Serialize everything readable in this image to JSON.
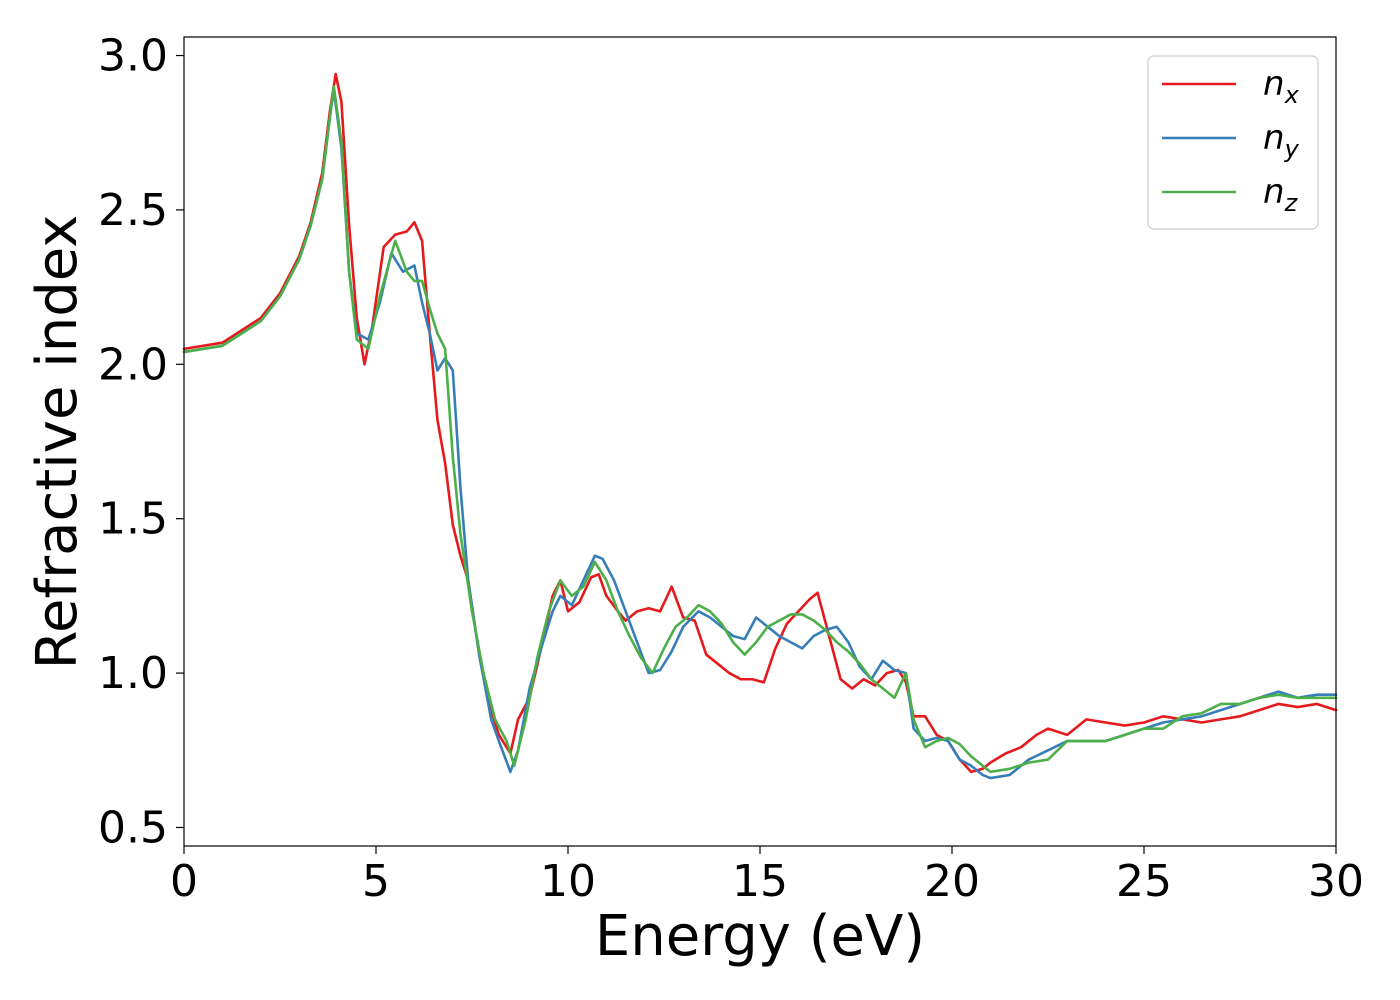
{
  "chart_data": {
    "type": "line",
    "xlabel": "Energy (eV)",
    "ylabel": "Refractive index",
    "xlim": [
      0,
      30
    ],
    "ylim": [
      0.44,
      3.06
    ],
    "x_ticks": [
      0,
      5,
      10,
      15,
      20,
      25,
      30
    ],
    "x_tick_labels": [
      "0",
      "5",
      "10",
      "15",
      "20",
      "25",
      "30"
    ],
    "y_ticks": [
      0.5,
      1.0,
      1.5,
      2.0,
      2.5,
      3.0
    ],
    "y_tick_labels": [
      "0.5",
      "1.0",
      "1.5",
      "2.0",
      "2.5",
      "3.0"
    ],
    "grid": false,
    "legend_position": "top-right",
    "series": [
      {
        "name": "n",
        "subscript": "x",
        "color": "#e41a1c",
        "x": [
          0,
          1,
          2,
          2.5,
          3,
          3.3,
          3.6,
          3.8,
          3.95,
          4.1,
          4.3,
          4.5,
          4.7,
          4.9,
          5.2,
          5.5,
          5.8,
          6.0,
          6.2,
          6.4,
          6.6,
          6.8,
          7.0,
          7.2,
          7.4,
          7.7,
          8.0,
          8.2,
          8.5,
          8.7,
          9.0,
          9.3,
          9.6,
          9.8,
          10.0,
          10.3,
          10.6,
          10.8,
          11.0,
          11.3,
          11.5,
          11.8,
          12.1,
          12.4,
          12.7,
          13.0,
          13.3,
          13.6,
          13.9,
          14.2,
          14.5,
          14.8,
          15.1,
          15.4,
          15.7,
          16.0,
          16.3,
          16.5,
          16.8,
          17.1,
          17.4,
          17.7,
          18.0,
          18.3,
          18.6,
          18.8,
          19.0,
          19.3,
          19.6,
          19.9,
          20.2,
          20.5,
          20.8,
          21.0,
          21.4,
          21.8,
          22.2,
          22.5,
          23.0,
          23.5,
          24.0,
          24.5,
          25.0,
          25.5,
          26.0,
          26.5,
          27.0,
          27.5,
          28.0,
          28.5,
          29.0,
          29.5,
          30.0
        ],
        "y": [
          2.05,
          2.07,
          2.15,
          2.23,
          2.35,
          2.46,
          2.62,
          2.82,
          2.94,
          2.85,
          2.45,
          2.15,
          2.0,
          2.12,
          2.38,
          2.42,
          2.43,
          2.46,
          2.4,
          2.1,
          1.82,
          1.68,
          1.48,
          1.38,
          1.3,
          1.05,
          0.88,
          0.8,
          0.74,
          0.85,
          0.92,
          1.08,
          1.25,
          1.3,
          1.2,
          1.23,
          1.31,
          1.32,
          1.25,
          1.2,
          1.17,
          1.2,
          1.21,
          1.2,
          1.28,
          1.18,
          1.17,
          1.06,
          1.03,
          1.0,
          0.98,
          0.98,
          0.97,
          1.08,
          1.16,
          1.2,
          1.24,
          1.26,
          1.12,
          0.98,
          0.95,
          0.98,
          0.96,
          1.0,
          1.01,
          0.97,
          0.86,
          0.86,
          0.8,
          0.78,
          0.72,
          0.68,
          0.69,
          0.71,
          0.74,
          0.76,
          0.8,
          0.82,
          0.8,
          0.85,
          0.84,
          0.83,
          0.84,
          0.86,
          0.85,
          0.84,
          0.85,
          0.86,
          0.88,
          0.9,
          0.89,
          0.9,
          0.88
        ]
      },
      {
        "name": "n",
        "subscript": "y",
        "color": "#377eb8",
        "x": [
          0,
          1,
          2,
          2.5,
          3,
          3.3,
          3.6,
          3.8,
          3.9,
          4.1,
          4.3,
          4.5,
          4.8,
          5.1,
          5.4,
          5.7,
          6.0,
          6.2,
          6.4,
          6.6,
          6.8,
          7.0,
          7.2,
          7.4,
          7.7,
          8.0,
          8.2,
          8.5,
          8.7,
          9.0,
          9.3,
          9.6,
          9.8,
          10.1,
          10.4,
          10.7,
          10.9,
          11.2,
          11.5,
          11.8,
          12.1,
          12.4,
          12.7,
          13.0,
          13.4,
          13.7,
          14.0,
          14.3,
          14.6,
          14.9,
          15.2,
          15.5,
          15.8,
          16.1,
          16.4,
          16.7,
          17.0,
          17.3,
          17.6,
          17.9,
          18.2,
          18.5,
          18.8,
          19.0,
          19.3,
          19.6,
          19.9,
          20.2,
          20.5,
          20.8,
          21.0,
          21.5,
          22.0,
          22.5,
          23.0,
          23.5,
          24.0,
          24.5,
          25.0,
          25.5,
          26.0,
          26.5,
          27.0,
          27.5,
          28.0,
          28.5,
          29.0,
          29.5,
          30.0
        ],
        "y": [
          2.04,
          2.06,
          2.14,
          2.22,
          2.34,
          2.45,
          2.6,
          2.8,
          2.89,
          2.7,
          2.3,
          2.1,
          2.08,
          2.2,
          2.36,
          2.3,
          2.32,
          2.2,
          2.1,
          1.98,
          2.02,
          1.98,
          1.6,
          1.3,
          1.05,
          0.85,
          0.78,
          0.68,
          0.75,
          0.95,
          1.08,
          1.2,
          1.25,
          1.22,
          1.3,
          1.38,
          1.37,
          1.3,
          1.2,
          1.1,
          1.0,
          1.01,
          1.07,
          1.15,
          1.2,
          1.18,
          1.15,
          1.12,
          1.11,
          1.18,
          1.15,
          1.12,
          1.1,
          1.08,
          1.12,
          1.14,
          1.15,
          1.1,
          1.02,
          0.98,
          1.04,
          1.01,
          1.0,
          0.82,
          0.78,
          0.79,
          0.78,
          0.72,
          0.7,
          0.67,
          0.66,
          0.67,
          0.72,
          0.75,
          0.78,
          0.78,
          0.78,
          0.8,
          0.82,
          0.84,
          0.85,
          0.86,
          0.88,
          0.9,
          0.92,
          0.94,
          0.92,
          0.93,
          0.93
        ]
      },
      {
        "name": "n",
        "subscript": "z",
        "color": "#4daf4a",
        "x": [
          0,
          1,
          2,
          2.5,
          3,
          3.3,
          3.6,
          3.8,
          3.9,
          4.1,
          4.3,
          4.5,
          4.8,
          5.1,
          5.5,
          5.8,
          6.0,
          6.2,
          6.4,
          6.6,
          6.8,
          7.0,
          7.2,
          7.5,
          7.8,
          8.1,
          8.4,
          8.6,
          8.9,
          9.2,
          9.5,
          9.8,
          10.1,
          10.4,
          10.7,
          11.0,
          11.3,
          11.6,
          11.9,
          12.2,
          12.5,
          12.8,
          13.1,
          13.4,
          13.7,
          14.0,
          14.3,
          14.6,
          14.9,
          15.2,
          15.5,
          15.8,
          16.1,
          16.4,
          16.7,
          17.0,
          17.3,
          17.6,
          17.9,
          18.2,
          18.5,
          18.8,
          19.0,
          19.3,
          19.6,
          19.9,
          20.2,
          20.5,
          20.8,
          21.0,
          21.5,
          22.0,
          22.5,
          23.0,
          23.5,
          24.0,
          24.5,
          25.0,
          25.5,
          26.0,
          26.5,
          27.0,
          27.5,
          28.0,
          28.5,
          29.0,
          29.5,
          30.0
        ],
        "y": [
          2.04,
          2.06,
          2.14,
          2.22,
          2.34,
          2.45,
          2.6,
          2.8,
          2.9,
          2.72,
          2.3,
          2.08,
          2.05,
          2.22,
          2.4,
          2.3,
          2.27,
          2.27,
          2.18,
          2.1,
          2.05,
          1.7,
          1.45,
          1.2,
          1.0,
          0.85,
          0.78,
          0.7,
          0.85,
          1.05,
          1.2,
          1.3,
          1.25,
          1.28,
          1.36,
          1.3,
          1.2,
          1.12,
          1.05,
          1.0,
          1.08,
          1.15,
          1.18,
          1.22,
          1.2,
          1.16,
          1.1,
          1.06,
          1.1,
          1.15,
          1.17,
          1.19,
          1.19,
          1.17,
          1.14,
          1.1,
          1.07,
          1.03,
          0.98,
          0.95,
          0.92,
          1.0,
          0.85,
          0.76,
          0.78,
          0.79,
          0.77,
          0.73,
          0.7,
          0.68,
          0.69,
          0.71,
          0.72,
          0.78,
          0.78,
          0.78,
          0.8,
          0.82,
          0.82,
          0.86,
          0.87,
          0.9,
          0.9,
          0.92,
          0.93,
          0.92,
          0.92,
          0.92
        ]
      }
    ]
  }
}
